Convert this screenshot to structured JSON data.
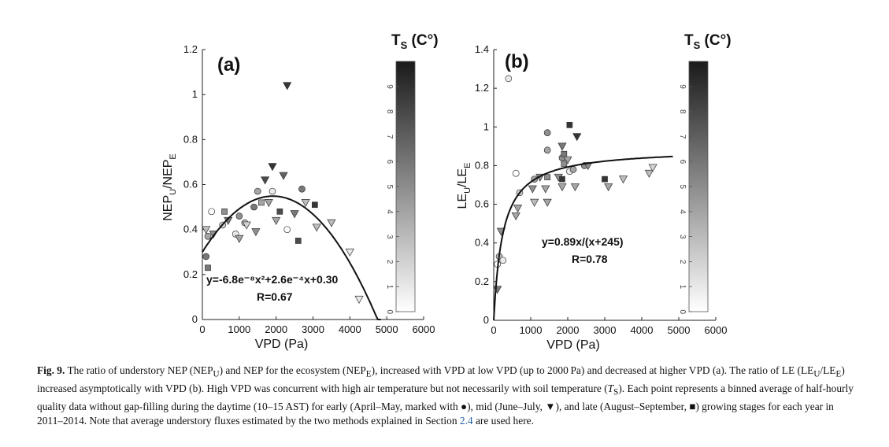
{
  "chart_data": [
    {
      "type": "scatter",
      "panel_label": "(a)",
      "xlabel": "VPD (Pa)",
      "ylabel": "NEP_U/NEP_E",
      "xlim": [
        0,
        6000
      ],
      "ylim": [
        0,
        1.2
      ],
      "xticks": [
        "0",
        "1000",
        "2000",
        "3000",
        "4000",
        "5000",
        "6000"
      ],
      "yticks": [
        "0",
        "0.2",
        "0.4",
        "0.6",
        "0.8",
        "1",
        "1.2"
      ],
      "fit": {
        "equation_text": "y=-6.8e⁻⁸x²+2.6e⁻⁴x+0.30",
        "r_text": "R=0.67",
        "a": -6.8e-08,
        "b": 0.00026,
        "c": 0.3,
        "x_range": [
          0,
          4850
        ]
      },
      "colorbar": {
        "title": "T",
        "subscript": "S",
        "unit": " (C°)",
        "ticks": [
          "0",
          "1",
          "2",
          "3",
          "4",
          "5",
          "6",
          "7",
          "8",
          "9"
        ],
        "range": [
          0,
          10
        ]
      },
      "points": [
        {
          "x": 100,
          "y": 0.28,
          "s": "c",
          "t": 6
        },
        {
          "x": 150,
          "y": 0.37,
          "s": "c",
          "t": 4
        },
        {
          "x": 250,
          "y": 0.48,
          "s": "c",
          "t": 0
        },
        {
          "x": 550,
          "y": 0.42,
          "s": "c",
          "t": 2
        },
        {
          "x": 900,
          "y": 0.38,
          "s": "c",
          "t": 1
        },
        {
          "x": 1000,
          "y": 0.46,
          "s": "c",
          "t": 5
        },
        {
          "x": 1150,
          "y": 0.43,
          "s": "c",
          "t": 3
        },
        {
          "x": 1400,
          "y": 0.5,
          "s": "c",
          "t": 6
        },
        {
          "x": 1500,
          "y": 0.57,
          "s": "c",
          "t": 4
        },
        {
          "x": 1900,
          "y": 0.57,
          "s": "c",
          "t": 1
        },
        {
          "x": 2300,
          "y": 0.4,
          "s": "c",
          "t": 0
        },
        {
          "x": 2700,
          "y": 0.58,
          "s": "c",
          "t": 6
        },
        {
          "x": 100,
          "y": 0.4,
          "s": "t",
          "t": 3
        },
        {
          "x": 300,
          "y": 0.38,
          "s": "t",
          "t": 5
        },
        {
          "x": 700,
          "y": 0.44,
          "s": "t",
          "t": 6
        },
        {
          "x": 1000,
          "y": 0.36,
          "s": "t",
          "t": 4
        },
        {
          "x": 1200,
          "y": 0.42,
          "s": "t",
          "t": 2
        },
        {
          "x": 1450,
          "y": 0.39,
          "s": "t",
          "t": 5
        },
        {
          "x": 1700,
          "y": 0.62,
          "s": "t",
          "t": 8
        },
        {
          "x": 1800,
          "y": 0.52,
          "s": "t",
          "t": 4
        },
        {
          "x": 1900,
          "y": 0.68,
          "s": "t",
          "t": 9
        },
        {
          "x": 2000,
          "y": 0.44,
          "s": "t",
          "t": 4
        },
        {
          "x": 2200,
          "y": 0.64,
          "s": "t",
          "t": 7
        },
        {
          "x": 2300,
          "y": 1.04,
          "s": "t",
          "t": 9
        },
        {
          "x": 2500,
          "y": 0.47,
          "s": "t",
          "t": 6
        },
        {
          "x": 3100,
          "y": 0.41,
          "s": "t",
          "t": 3
        },
        {
          "x": 3500,
          "y": 0.43,
          "s": "t",
          "t": 3
        },
        {
          "x": 4000,
          "y": 0.3,
          "s": "t",
          "t": 1
        },
        {
          "x": 4250,
          "y": 0.09,
          "s": "t",
          "t": 1
        },
        {
          "x": 2800,
          "y": 0.52,
          "s": "t",
          "t": 3
        },
        {
          "x": 150,
          "y": 0.23,
          "s": "s",
          "t": 6
        },
        {
          "x": 600,
          "y": 0.48,
          "s": "s",
          "t": 5
        },
        {
          "x": 1600,
          "y": 0.52,
          "s": "s",
          "t": 4
        },
        {
          "x": 2100,
          "y": 0.48,
          "s": "s",
          "t": 8
        },
        {
          "x": 2600,
          "y": 0.35,
          "s": "s",
          "t": 8
        },
        {
          "x": 3050,
          "y": 0.51,
          "s": "s",
          "t": 9
        }
      ]
    },
    {
      "type": "scatter",
      "panel_label": "(b)",
      "xlabel": "VPD (Pa)",
      "ylabel": "LE_U/LE_E",
      "xlim": [
        0,
        6000
      ],
      "ylim": [
        0,
        1.4
      ],
      "xticks": [
        "0",
        "1000",
        "2000",
        "3000",
        "4000",
        "5000",
        "6000"
      ],
      "yticks": [
        "0",
        "0.2",
        "0.4",
        "0.6",
        "0.8",
        "1",
        "1.2",
        "1.4"
      ],
      "fit": {
        "equation_text": "y=0.89x/(x+245)",
        "r_text": "R=0.78",
        "a": 0.89,
        "k": 245,
        "x_range": [
          0,
          4850
        ]
      },
      "colorbar": {
        "title": "T",
        "subscript": "S",
        "unit": " (C°)",
        "ticks": [
          "0",
          "1",
          "2",
          "3",
          "4",
          "5",
          "6",
          "7",
          "8",
          "9"
        ],
        "range": [
          0,
          10
        ]
      },
      "points": [
        {
          "x": 400,
          "y": 1.25,
          "s": "c",
          "t": 1
        },
        {
          "x": 100,
          "y": 0.29,
          "s": "c",
          "t": 0
        },
        {
          "x": 150,
          "y": 0.33,
          "s": "c",
          "t": 3
        },
        {
          "x": 250,
          "y": 0.31,
          "s": "c",
          "t": 1
        },
        {
          "x": 600,
          "y": 0.76,
          "s": "c",
          "t": 0
        },
        {
          "x": 700,
          "y": 0.66,
          "s": "c",
          "t": 2
        },
        {
          "x": 1100,
          "y": 0.73,
          "s": "c",
          "t": 4
        },
        {
          "x": 1450,
          "y": 0.97,
          "s": "c",
          "t": 5
        },
        {
          "x": 1450,
          "y": 0.88,
          "s": "c",
          "t": 4
        },
        {
          "x": 1850,
          "y": 0.84,
          "s": "c",
          "t": 5
        },
        {
          "x": 2050,
          "y": 0.77,
          "s": "c",
          "t": 1
        },
        {
          "x": 2150,
          "y": 0.78,
          "s": "c",
          "t": 4
        },
        {
          "x": 2450,
          "y": 0.8,
          "s": "c",
          "t": 5
        },
        {
          "x": 100,
          "y": 0.16,
          "s": "t",
          "t": 6
        },
        {
          "x": 200,
          "y": 0.46,
          "s": "t",
          "t": 5
        },
        {
          "x": 600,
          "y": 0.54,
          "s": "t",
          "t": 4
        },
        {
          "x": 1050,
          "y": 0.68,
          "s": "t",
          "t": 5
        },
        {
          "x": 1100,
          "y": 0.61,
          "s": "t",
          "t": 3
        },
        {
          "x": 1400,
          "y": 0.68,
          "s": "t",
          "t": 4
        },
        {
          "x": 1450,
          "y": 0.61,
          "s": "t",
          "t": 4
        },
        {
          "x": 1750,
          "y": 0.74,
          "s": "t",
          "t": 5
        },
        {
          "x": 1850,
          "y": 0.69,
          "s": "t",
          "t": 4
        },
        {
          "x": 2000,
          "y": 0.83,
          "s": "t",
          "t": 4
        },
        {
          "x": 2200,
          "y": 0.69,
          "s": "t",
          "t": 4
        },
        {
          "x": 2250,
          "y": 0.95,
          "s": "t",
          "t": 9
        },
        {
          "x": 2550,
          "y": 0.8,
          "s": "t",
          "t": 5
        },
        {
          "x": 3100,
          "y": 0.69,
          "s": "t",
          "t": 4
        },
        {
          "x": 3500,
          "y": 0.73,
          "s": "t",
          "t": 3
        },
        {
          "x": 4200,
          "y": 0.76,
          "s": "t",
          "t": 3
        },
        {
          "x": 4300,
          "y": 0.79,
          "s": "t",
          "t": 2
        },
        {
          "x": 1850,
          "y": 0.9,
          "s": "t",
          "t": 6
        },
        {
          "x": 1250,
          "y": 0.74,
          "s": "t",
          "t": 5
        },
        {
          "x": 650,
          "y": 0.58,
          "s": "t",
          "t": 4
        },
        {
          "x": 1900,
          "y": 0.86,
          "s": "s",
          "t": 6
        },
        {
          "x": 2050,
          "y": 1.01,
          "s": "s",
          "t": 9
        },
        {
          "x": 1900,
          "y": 0.81,
          "s": "s",
          "t": 5
        },
        {
          "x": 1850,
          "y": 0.73,
          "s": "s",
          "t": 9
        },
        {
          "x": 3000,
          "y": 0.73,
          "s": "s",
          "t": 9
        },
        {
          "x": 1450,
          "y": 0.74,
          "s": "s",
          "t": 5
        }
      ]
    }
  ],
  "caption": {
    "label": "Fig. 9.",
    "text_1": " The ratio of understory NEP (NEP",
    "sub_u": "U",
    "text_2": ") and NEP for the ecosystem (NEP",
    "sub_e": "E",
    "text_3": "), increased with VPD at low VPD (up to 2000 Pa) and decreased at higher VPD (a). The ratio of LE (LE",
    "sub_u2": "U",
    "text_4": "/LE",
    "sub_e2": "E",
    "text_5": ") increased asymptotically with VPD (b). High VPD was concurrent with high air temperature but not necessarily with soil temperature (",
    "ts_italic": "T",
    "sub_s": "S",
    "text_6": "). Each point represents a binned average of half-hourly quality data without gap-filling during the daytime (10–15 AST) for early (April–May, marked with ●), mid (June–July, ▼), and late (August–September, ■) growing stages for each year in 2011–2014. Note that average understory fluxes estimated by the two methods explained in Section ",
    "section_ref": "2.4",
    "text_7": " are used here."
  }
}
